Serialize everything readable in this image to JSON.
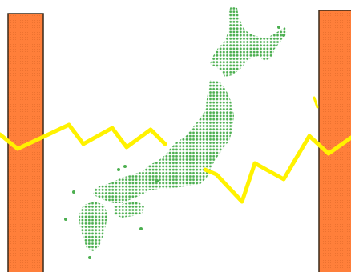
{
  "illustration": {
    "map_subject": "japan-archipelago-dotted-map",
    "colors": {
      "background": "#FFFFFF",
      "map_dots": "#4CAF50",
      "map_dots_dark": "#3C8F3F",
      "pillar_fill": "#FF7F3A",
      "pillar_outline": "#3A2A1A",
      "zigzag_line": "#FFF200"
    },
    "icons": [
      "japan-map-icon",
      "pillar-left-icon",
      "pillar-right-icon",
      "zigzag-line-left-icon",
      "zigzag-line-right-icon"
    ]
  }
}
